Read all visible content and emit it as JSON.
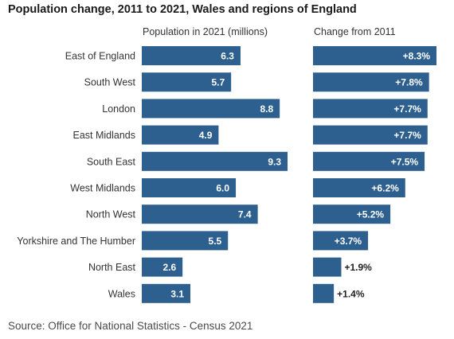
{
  "title": "Population change, 2011 to 2021, Wales and regions of England",
  "source": "Source: Office for National Statistics - Census 2021",
  "colors": {
    "bar": "#2d5f8f",
    "bar_label": "#ffffff",
    "outside_label": "#222222",
    "axis_text": "#333333"
  },
  "chart_data": [
    {
      "type": "bar",
      "orientation": "horizontal",
      "title": "Population in 2021 (millions)",
      "categories": [
        "East of England",
        "South West",
        "London",
        "East Midlands",
        "South East",
        "West Midlands",
        "North West",
        "Yorkshire and The Humber",
        "North East",
        "Wales"
      ],
      "values": [
        6.3,
        5.7,
        8.8,
        4.9,
        9.3,
        6.0,
        7.4,
        5.5,
        2.6,
        3.1
      ],
      "labels": [
        "6.3",
        "5.7",
        "8.8",
        "4.9",
        "9.3",
        "6.0",
        "7.4",
        "5.5",
        "2.6",
        "3.1"
      ],
      "xlim": [
        0,
        9.3
      ],
      "grid": false
    },
    {
      "type": "bar",
      "orientation": "horizontal",
      "title": "Change from 2011",
      "categories": [
        "East of England",
        "South West",
        "London",
        "East Midlands",
        "South East",
        "West Midlands",
        "North West",
        "Yorkshire and The Humber",
        "North East",
        "Wales"
      ],
      "values": [
        8.3,
        7.8,
        7.7,
        7.7,
        7.5,
        6.2,
        5.2,
        3.7,
        1.9,
        1.4
      ],
      "labels": [
        "+8.3%",
        "+7.8%",
        "+7.7%",
        "+7.7%",
        "+7.5%",
        "+6.2%",
        "+5.2%",
        "+3.7%",
        "+1.9%",
        "+1.4%"
      ],
      "unit": "%",
      "xlim": [
        0,
        8.3
      ],
      "grid": false
    }
  ]
}
